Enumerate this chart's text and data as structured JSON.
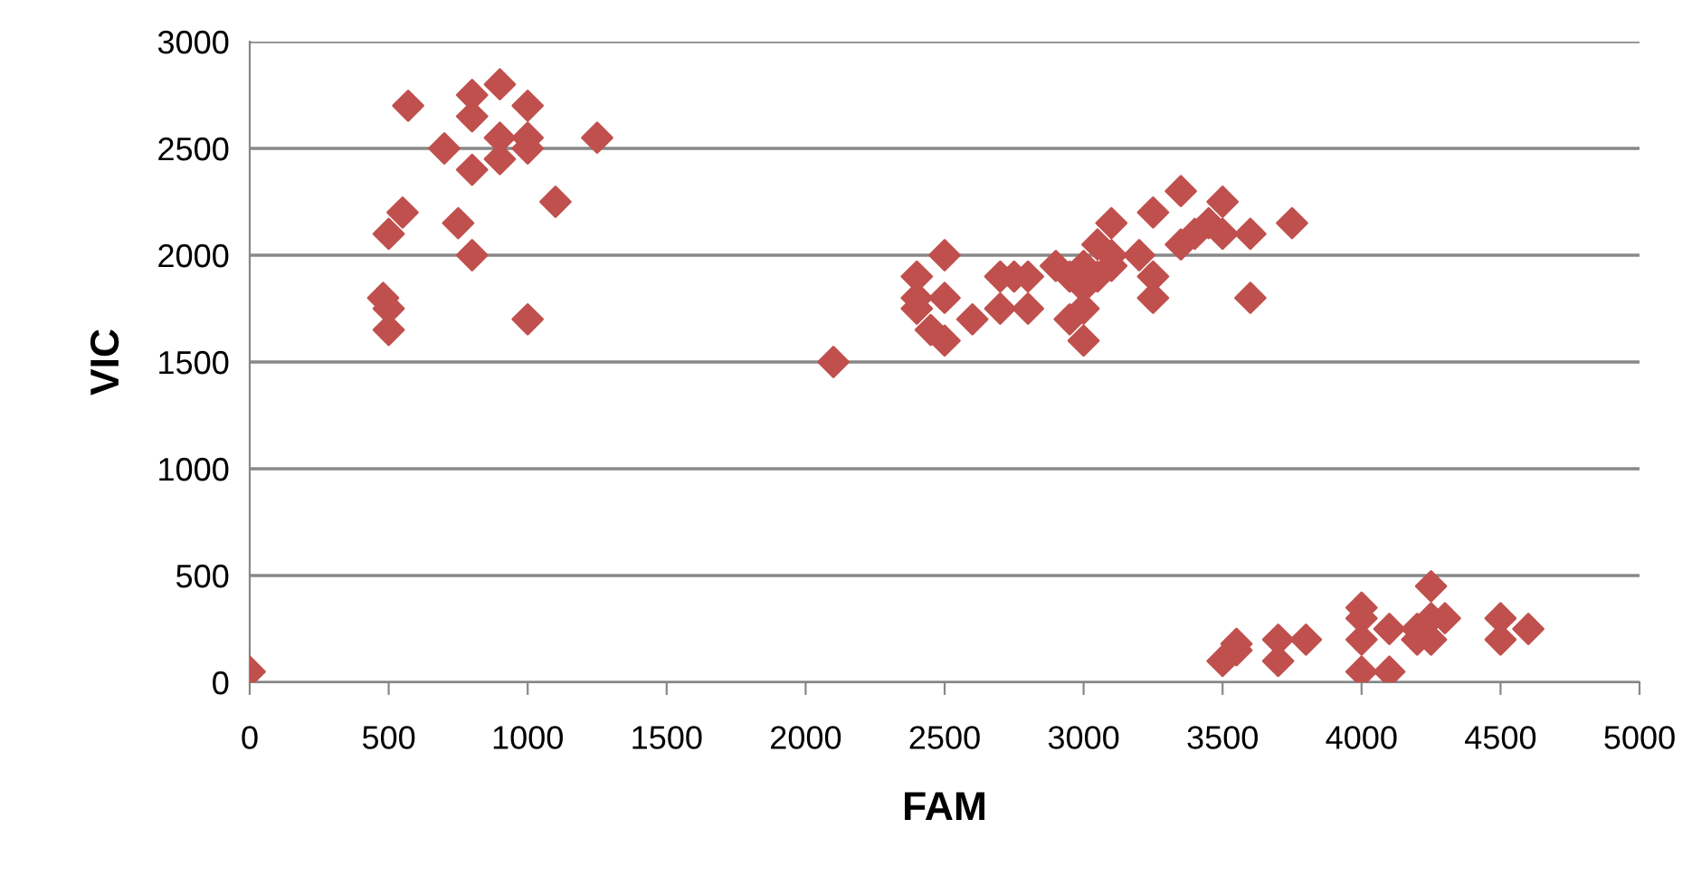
{
  "chart_data": {
    "type": "scatter",
    "xlabel": "FAM",
    "ylabel": "VIC",
    "marker": "diamond",
    "grid": "y",
    "xlim": [
      0,
      5000
    ],
    "ylim": [
      0,
      3000
    ],
    "xticks": [
      0,
      500,
      1000,
      1500,
      2000,
      2500,
      3000,
      3500,
      4000,
      4500,
      5000
    ],
    "yticks": [
      0,
      500,
      1000,
      1500,
      2000,
      2500,
      3000
    ],
    "series": [
      {
        "color": "#c0504d",
        "x": [
          0,
          570,
          700,
          800,
          800,
          900,
          1000,
          900,
          900,
          1000,
          1000,
          1250,
          800,
          1100,
          500,
          550,
          750,
          800,
          480,
          500,
          500,
          1000,
          2100,
          2400,
          2400,
          2400,
          2450,
          2500,
          2500,
          2500,
          2600,
          2700,
          2700,
          2750,
          2800,
          2800,
          2900,
          2950,
          3000,
          3000,
          3000,
          3000,
          3050,
          3100,
          3100,
          3100,
          3200,
          3250,
          3250,
          3250,
          3350,
          3350,
          3400,
          3450,
          3500,
          3500,
          3600,
          3600,
          3750,
          2950,
          3050,
          3500,
          3550,
          3550,
          3700,
          3700,
          3800,
          4000,
          4000,
          4000,
          4000,
          4100,
          4100,
          4200,
          4200,
          4250,
          4250,
          4250,
          4300,
          4500,
          4500,
          4600
        ],
        "values": [
          50,
          2700,
          2500,
          2750,
          2650,
          2800,
          2700,
          2550,
          2450,
          2550,
          2500,
          2550,
          2400,
          2250,
          2100,
          2200,
          2150,
          2000,
          1800,
          1750,
          1650,
          1700,
          1500,
          1900,
          1800,
          1750,
          1650,
          1600,
          2000,
          1800,
          1700,
          1750,
          1900,
          1900,
          1900,
          1750,
          1950,
          1700,
          1950,
          1850,
          1600,
          1750,
          1900,
          2000,
          2150,
          1950,
          2000,
          1900,
          1800,
          2200,
          2300,
          2050,
          2100,
          2150,
          2250,
          2100,
          2100,
          1800,
          2150,
          1900,
          2050,
          100,
          150,
          180,
          200,
          100,
          200,
          350,
          300,
          200,
          50,
          50,
          250,
          250,
          200,
          450,
          300,
          200,
          300,
          300,
          200,
          250
        ]
      }
    ]
  }
}
